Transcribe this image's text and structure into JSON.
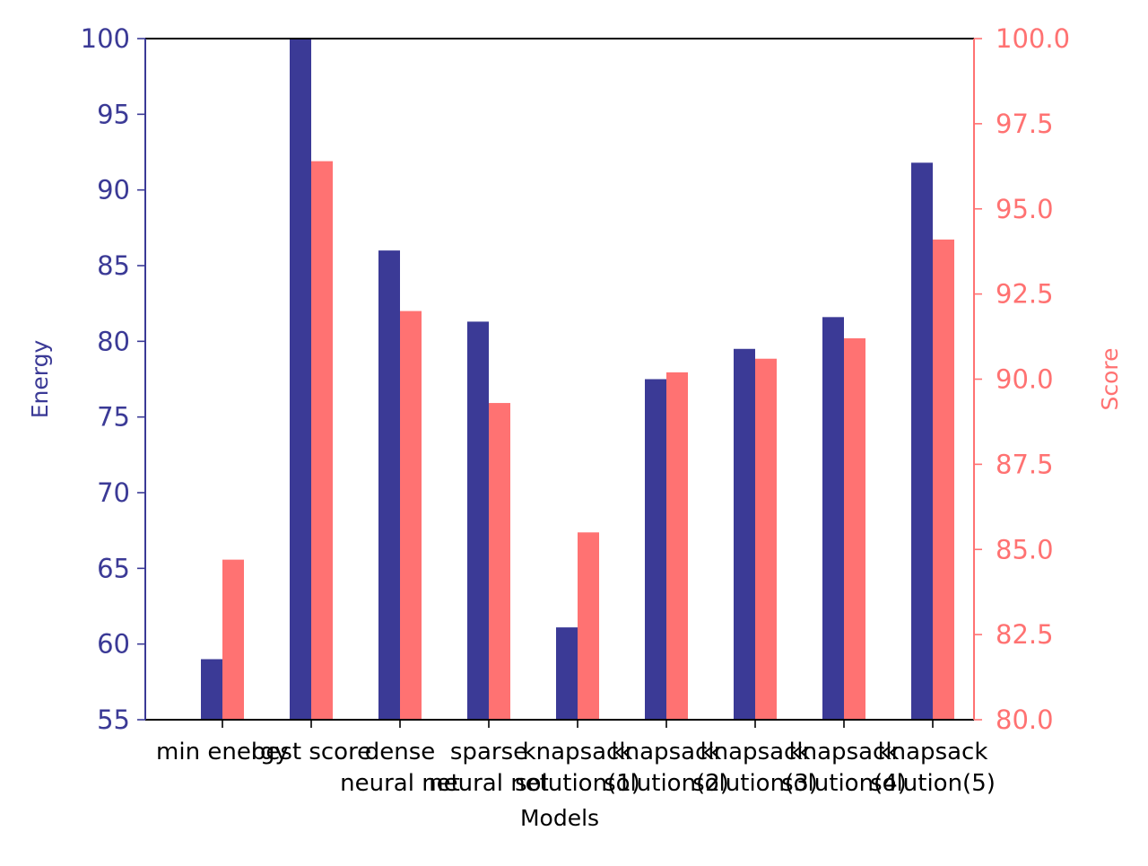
{
  "colors": {
    "energy": "#3b3a96",
    "score": "#ff7272",
    "axis": "#000000",
    "background": "#ffffff"
  },
  "chart_data": {
    "type": "bar",
    "categories": [
      [
        "min energy"
      ],
      [
        "best score"
      ],
      [
        "dense",
        "neural net"
      ],
      [
        "sparse",
        "neural net"
      ],
      [
        "knapsack",
        "solution(1)"
      ],
      [
        "knapsack",
        "solution(2)"
      ],
      [
        "knapsack",
        "solution(3)"
      ],
      [
        "knapsack",
        "solution(4)"
      ],
      [
        "knapsack",
        "solution(5)"
      ]
    ],
    "series": [
      {
        "name": "Energy",
        "axis": "left",
        "color": "#3b3a96",
        "values": [
          59.0,
          100.0,
          86.0,
          81.3,
          61.1,
          77.5,
          79.5,
          81.6,
          91.8
        ]
      },
      {
        "name": "Score",
        "axis": "right",
        "color": "#ff7272",
        "values": [
          84.7,
          96.4,
          92.0,
          89.3,
          85.5,
          90.2,
          90.6,
          91.2,
          94.1
        ]
      }
    ],
    "xlabel": "Models",
    "ylabel_left": "Energy",
    "ylabel_right": "Score",
    "ylim_left": [
      55,
      100
    ],
    "ylim_right": [
      80,
      100
    ],
    "yticks_left": [
      "55",
      "60",
      "65",
      "70",
      "75",
      "80",
      "85",
      "90",
      "95",
      "100"
    ],
    "yticks_right": [
      "80.0",
      "82.5",
      "85.0",
      "87.5",
      "90.0",
      "92.5",
      "95.0",
      "97.5",
      "100.0"
    ],
    "grid": false,
    "legend": "none"
  }
}
